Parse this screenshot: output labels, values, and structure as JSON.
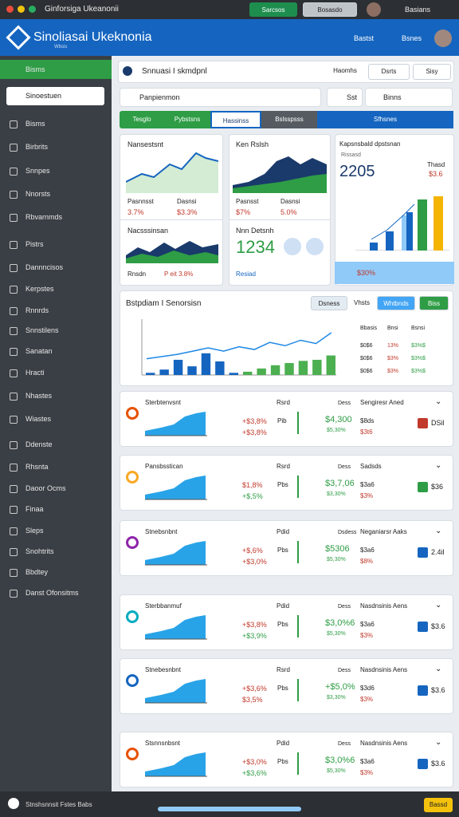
{
  "topbar": {
    "title": "Ginforsiga Ukeanonii",
    "btn1": "Sarcsos",
    "btn2": "Bosasdo",
    "user": "Basians"
  },
  "header": {
    "title": "Sinoliasai Ukeknonia",
    "sub": "Wbsis",
    "link1": "Bastst",
    "link2": "Bsnes"
  },
  "sidebar": {
    "top": "Bisms",
    "search": "Sinoestuen",
    "items": [
      "Bisms",
      "Birbrits",
      "Snnpes",
      "Nnorsts",
      "Rbvarnmds",
      "Pistrs",
      "Dannncisos",
      "Kerpstes",
      "Rnnrds",
      "Snnstilens",
      "Sanatan",
      "Hracti",
      "Nhastes",
      "Wiastes",
      "Ddenste",
      "Rhsnta",
      "Daoor Ocms",
      "Finaa",
      "Sleps",
      "Snohtrits",
      "Bbdtey",
      "Danst Ofonsitms"
    ]
  },
  "toolbar": {
    "title": "Snnuasi I skmdpnl",
    "btn1": "Haomhs",
    "btn2": "Dsrts",
    "btn3": "Sisy",
    "search": "Panpienmon",
    "filter1": "Sst",
    "filter2": "Binns"
  },
  "tabs": [
    "Tesglo",
    "Pybstsns",
    "Hassinss",
    "Bslsspsss",
    "Sfhsnes"
  ],
  "cards": {
    "c1": {
      "title": "Nansestsnt",
      "l1": "Pasnnsst",
      "l2": "Dasnsi",
      "v1": "3.7%",
      "v2": "$3.3%"
    },
    "c2": {
      "title": "Nacsssinsan",
      "l1": "Rnsdn",
      "v1": "P eit 3.8%"
    },
    "c3": {
      "title": "Ken Rslsh",
      "l1": "Pasnsst",
      "l2": "Dasnsi",
      "v1": "$7%",
      "v2": "5.0%"
    },
    "c4": {
      "title": "Nnn Detsnh",
      "big": "1234",
      "link": "Resiad"
    },
    "c5": {
      "title": "Kapsnsbald dpstsnan",
      "sub": "Rissasd",
      "big": "2205",
      "side1": "Thasd",
      "side2": "$3.6",
      "foot": "$30%"
    }
  },
  "main_chart": {
    "title": "Bstpdiam I Senorsisn",
    "btn1": "Dsness",
    "btn2": "Vhsts",
    "btn3": "Whtbnds",
    "btn4": "Biss",
    "ylim": [
      0,
      100
    ],
    "bars": [
      4,
      10,
      28,
      16,
      40,
      25,
      4,
      6,
      12,
      18,
      22,
      26,
      28,
      36
    ],
    "line": [
      30,
      34,
      38,
      44,
      50,
      44,
      52,
      47,
      60,
      54,
      64,
      58,
      78
    ],
    "legend": {
      "header": [
        "Bbasis",
        "Bnsi",
        "Bsnsi"
      ],
      "rows": [
        [
          "$0$6",
          "13%",
          "$3%$"
        ],
        [
          "$0$6",
          "$3%",
          "$3%$"
        ],
        [
          "$0$6",
          "$3%",
          "$3%$"
        ]
      ]
    }
  },
  "rows": [
    {
      "title": "Sterbtenvsnt",
      "h2": "Rsrd",
      "h3": "Dess",
      "h4": "Sengiresr Aned",
      "a1": "+$3,8%",
      "a2": "+$3,8%",
      "m1": "Pib",
      "b": "$4,300",
      "b2": "$5,30%",
      "c1": "$8ds",
      "c2": "$3t6",
      "badge": "DSil"
    },
    {
      "title": "Pansbsstican",
      "h2": "Rsrd",
      "h3": "Dess",
      "h4": "Sadsds",
      "a1": "$1,8%",
      "a2": "+$,5%",
      "m1": "Pbs",
      "b": "$3,7,06",
      "b2": "$3,30%",
      "c1": "$3a6",
      "c2": "$3%",
      "badge": "$36"
    },
    {
      "title": "Stnebsnbnt",
      "h2": "Pdid",
      "h3": "Dsdess",
      "h4": "Neganiarsr Aaks",
      "a1": "+$,6%",
      "a2": "+$3,0%",
      "m1": "Pbs",
      "b": "$5306",
      "b2": "$5,30%",
      "c1": "$3a6",
      "c2": "$8%",
      "badge": "2.4il"
    },
    {
      "title": "Sterbbanmuf",
      "h2": "Pdid",
      "h3": "Dess",
      "h4": "Nasdnsinis Aens",
      "a1": "+$3,8%",
      "a2": "+$3,9%",
      "m1": "Pbs",
      "b": "$3,0%6",
      "b2": "$5,30%",
      "c1": "$3a6",
      "c2": "$3%",
      "badge": "$3.6"
    },
    {
      "title": "Stnebesnbnt",
      "h2": "Rsrd",
      "h3": "Dess",
      "h4": "Nasdnsinis Aens",
      "a1": "+$3,6%",
      "a2": "$3,5%",
      "m1": "Pbs",
      "b": "+$5,0%",
      "b2": "$3,30%",
      "c1": "$3d6",
      "c2": "$3%",
      "badge": "$3.6"
    },
    {
      "title": "Stsnnsnbsnt",
      "h2": "Pdid",
      "h3": "Dess",
      "h4": "Nasdnsinis Aens",
      "a1": "+$3,0%",
      "a2": "+$3,6%",
      "m1": "Pbs",
      "b": "$3,0%6",
      "b2": "$5,30%",
      "c1": "$3a6",
      "c2": "$3%",
      "badge": "$3.6"
    }
  ],
  "footer": {
    "title": "Stnshsnnsit Fstes Babs",
    "btn": "Bassd"
  }
}
